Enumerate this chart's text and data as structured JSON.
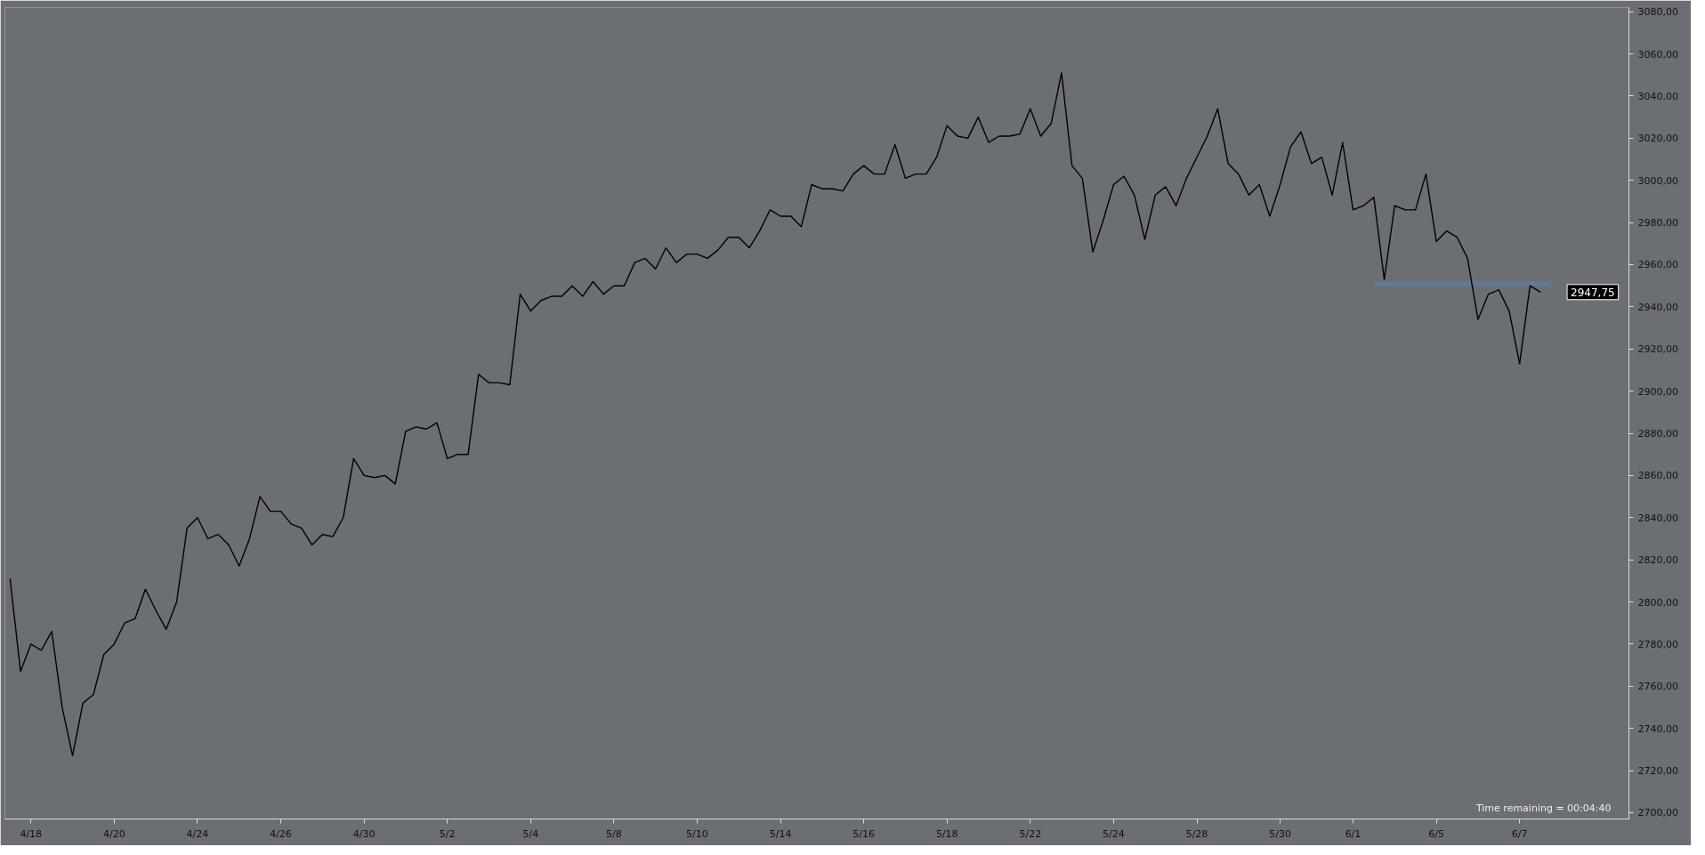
{
  "chart_data": {
    "type": "line",
    "categories": [
      null,
      null,
      "4/18",
      null,
      null,
      null,
      null,
      null,
      null,
      null,
      "4/20",
      null,
      null,
      null,
      null,
      null,
      null,
      null,
      "4/24",
      null,
      null,
      null,
      null,
      null,
      null,
      null,
      "4/26",
      null,
      null,
      null,
      null,
      null,
      null,
      null,
      "4/30",
      null,
      null,
      null,
      null,
      null,
      null,
      null,
      "5/2",
      null,
      null,
      null,
      null,
      null,
      null,
      null,
      "5/4",
      null,
      null,
      null,
      null,
      null,
      null,
      null,
      "5/8",
      null,
      null,
      null,
      null,
      null,
      null,
      null,
      "5/10",
      null,
      null,
      null,
      null,
      null,
      null,
      null,
      "5/14",
      null,
      null,
      null,
      null,
      null,
      null,
      null,
      "5/16",
      null,
      null,
      null,
      null,
      null,
      null,
      null,
      "5/18",
      null,
      null,
      null,
      null,
      null,
      null,
      null,
      "5/22",
      null,
      null,
      null,
      null,
      null,
      null,
      null,
      "5/24",
      null,
      null,
      null,
      null,
      null,
      null,
      null,
      "5/28",
      null,
      null,
      null,
      null,
      null,
      null,
      null,
      "5/30",
      null,
      null,
      null,
      null,
      null,
      null,
      "6/1",
      null,
      null,
      null,
      null,
      null,
      null,
      null,
      "6/5",
      null,
      null,
      null,
      null,
      null,
      null,
      null,
      "6/7",
      null,
      null,
      null,
      null,
      null,
      null,
      null,
      null,
      null,
      null
    ],
    "series": [
      {
        "color": "#000000",
        "values": [
          2811,
          2767,
          2780,
          2777,
          2786,
          2750,
          2727,
          2752,
          2756,
          2775,
          2780,
          2790,
          2792,
          2806,
          2796,
          2787,
          2800,
          2835,
          2840,
          2830,
          2832,
          2827,
          2817,
          2830,
          2850,
          2843,
          2843,
          2837,
          2835,
          2827,
          2832,
          2831,
          2840,
          2868,
          2860,
          2859,
          2860,
          2856,
          2881,
          2883,
          2882,
          2885,
          2868,
          2870,
          2870,
          2908,
          2904,
          2904,
          2903,
          2946,
          2938,
          2943,
          2945,
          2945,
          2950,
          2945,
          2952,
          2946,
          2950,
          2950,
          2961,
          2963,
          2958,
          2968,
          2961,
          2965,
          2965,
          2963,
          2967,
          2973,
          2973,
          2968,
          2976,
          2986,
          2983,
          2983,
          2978,
          2998,
          2996,
          2996,
          2995,
          3003,
          3007,
          3003,
          3003,
          3017,
          3001,
          3003,
          3003,
          3011,
          3026,
          3021,
          3020,
          3030,
          3018,
          3021,
          3021,
          3022,
          3034,
          3021,
          3027,
          3051,
          3007,
          3001,
          2966,
          2981,
          2998,
          3002,
          2993,
          2972,
          2993,
          2997,
          2988,
          3001,
          3011,
          3021,
          3034,
          3008,
          3003,
          2993,
          2998,
          2983,
          2998,
          3016,
          3023,
          3008,
          3011,
          2993,
          3018,
          2986,
          2988,
          2992,
          2953,
          2988,
          2986,
          2986,
          3003,
          2971,
          2976,
          2973,
          2963,
          2934,
          2946,
          2948,
          2938,
          2913,
          2950,
          2947,
          null,
          null,
          null,
          null,
          null,
          null,
          null,
          null
        ]
      },
      {
        "color": "#5b7fa8",
        "values": [
          null,
          null,
          null,
          null,
          null,
          null,
          null,
          null,
          null,
          null,
          null,
          null,
          null,
          null,
          null,
          null,
          null,
          null,
          null,
          null,
          null,
          null,
          null,
          null,
          null,
          null,
          null,
          null,
          null,
          null,
          null,
          null,
          null,
          null,
          null,
          null,
          null,
          null,
          null,
          null,
          null,
          null,
          null,
          null,
          null,
          null,
          null,
          null,
          null,
          null,
          null,
          null,
          null,
          null,
          null,
          null,
          null,
          null,
          null,
          null,
          null,
          null,
          null,
          null,
          null,
          null,
          null,
          null,
          null,
          null,
          null,
          null,
          null,
          null,
          null,
          null,
          null,
          null,
          null,
          null,
          null,
          null,
          null,
          null,
          null,
          null,
          null,
          null,
          null,
          null,
          null,
          null,
          null,
          null,
          null,
          null,
          null,
          null,
          null,
          null,
          null,
          null,
          null,
          null,
          null,
          null,
          null,
          null,
          null,
          null,
          null,
          null,
          null,
          null,
          null,
          null,
          null,
          null,
          null,
          null,
          null,
          null,
          null,
          null,
          null,
          null,
          null,
          null,
          null,
          null,
          null,
          2951,
          2951,
          2951,
          2951,
          2951,
          2951,
          2951,
          2951,
          2951,
          2951,
          2951,
          2951,
          2951,
          2951,
          2951,
          2951,
          2951,
          2951,
          null,
          null,
          null,
          null,
          null,
          null,
          null
        ]
      }
    ],
    "ylim": [
      2697,
      3082
    ],
    "yticks": [
      {
        "value": 2700,
        "label": "2700,00"
      },
      {
        "value": 2720,
        "label": "2720,00"
      },
      {
        "value": 2740,
        "label": "2740,00"
      },
      {
        "value": 2760,
        "label": "2760,00"
      },
      {
        "value": 2780,
        "label": "2780,00"
      },
      {
        "value": 2800,
        "label": "2800,00"
      },
      {
        "value": 2820,
        "label": "2820,00"
      },
      {
        "value": 2840,
        "label": "2840,00"
      },
      {
        "value": 2860,
        "label": "2860,00"
      },
      {
        "value": 2880,
        "label": "2880,00"
      },
      {
        "value": 2900,
        "label": "2900,00"
      },
      {
        "value": 2920,
        "label": "2920,00"
      },
      {
        "value": 2940,
        "label": "2940,00"
      },
      {
        "value": 2960,
        "label": "2960,00"
      },
      {
        "value": 2980,
        "label": "2980,00"
      },
      {
        "value": 3000,
        "label": "3000,00"
      },
      {
        "value": 3020,
        "label": "3020,00"
      },
      {
        "value": 3040,
        "label": "3040,00"
      },
      {
        "value": 3060,
        "label": "3060,00"
      },
      {
        "value": 3080,
        "label": "3080,00"
      }
    ],
    "annotations": [
      "Time remaining = 00:04:40",
      "2947,75"
    ],
    "grid": false
  }
}
